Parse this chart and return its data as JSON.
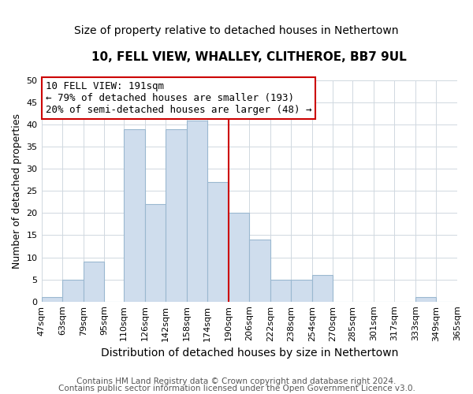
{
  "title": "10, FELL VIEW, WHALLEY, CLITHEROE, BB7 9UL",
  "subtitle": "Size of property relative to detached houses in Nethertown",
  "xlabel": "Distribution of detached houses by size in Nethertown",
  "ylabel": "Number of detached properties",
  "bin_edges": [
    47,
    63,
    79,
    95,
    110,
    126,
    142,
    158,
    174,
    190,
    206,
    222,
    238,
    254,
    270,
    285,
    301,
    317,
    333,
    349,
    365
  ],
  "bin_labels": [
    "47sqm",
    "63sqm",
    "79sqm",
    "95sqm",
    "110sqm",
    "126sqm",
    "142sqm",
    "158sqm",
    "174sqm",
    "190sqm",
    "206sqm",
    "222sqm",
    "238sqm",
    "254sqm",
    "270sqm",
    "285sqm",
    "301sqm",
    "317sqm",
    "333sqm",
    "349sqm",
    "365sqm"
  ],
  "counts": [
    1,
    5,
    9,
    0,
    39,
    22,
    39,
    41,
    27,
    20,
    14,
    5,
    5,
    6,
    0,
    0,
    0,
    0,
    1,
    0
  ],
  "bar_color": "#cfdded",
  "bar_edge_color": "#9ab8d0",
  "vline_x": 190,
  "vline_color": "#cc0000",
  "ylim": [
    0,
    50
  ],
  "yticks": [
    0,
    5,
    10,
    15,
    20,
    25,
    30,
    35,
    40,
    45,
    50
  ],
  "annotation_line1": "10 FELL VIEW: 191sqm",
  "annotation_line2": "← 79% of detached houses are smaller (193)",
  "annotation_line3": "20% of semi-detached houses are larger (48) →",
  "annotation_box_edge": "#cc0000",
  "footer_line1": "Contains HM Land Registry data © Crown copyright and database right 2024.",
  "footer_line2": "Contains public sector information licensed under the Open Government Licence v3.0.",
  "title_fontsize": 11,
  "subtitle_fontsize": 10,
  "xlabel_fontsize": 10,
  "ylabel_fontsize": 9,
  "tick_fontsize": 8,
  "annotation_fontsize": 9,
  "footer_fontsize": 7.5
}
